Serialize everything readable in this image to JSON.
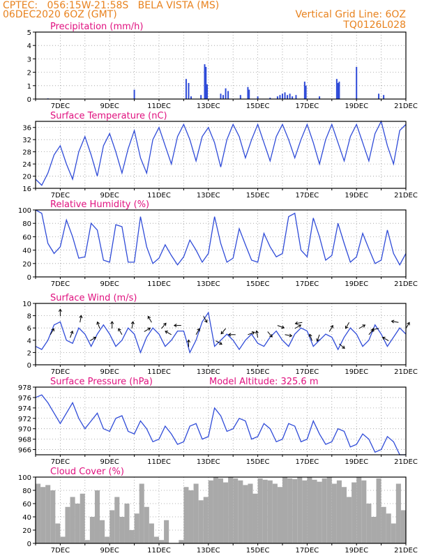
{
  "header": {
    "line1": "CPTEC:   056:15W-21:58S   BELA VISTA (MS)",
    "line2": "06DEC2020 6OZ (GMT)",
    "grid_note": "Vertical Grid Line: 6OZ",
    "code": "TQ0126L028"
  },
  "colors": {
    "header": "#e8821e",
    "title": "#e0117f",
    "line": "#2f4bd8",
    "precip": "#2f4bd8",
    "cloud": "#a9a9a9",
    "grid": "#999999"
  },
  "x_ticks": [
    "7DEC",
    "9DEC",
    "11DEC",
    "13DEC",
    "15DEC",
    "17DEC",
    "19DEC",
    "21DEC"
  ],
  "chart_data": [
    {
      "type": "bar",
      "title": "Precipitation (mm/h)",
      "ylim": [
        0,
        5
      ],
      "yticks": [
        "0",
        "1",
        "2",
        "3",
        "4",
        "5"
      ],
      "x": [
        "6.5",
        "10.0",
        "12.1",
        "12.2",
        "12.3",
        "12.7",
        "12.85",
        "12.9",
        "12.95",
        "13.5",
        "13.6",
        "13.7",
        "13.8",
        "14.3",
        "14.6",
        "14.65",
        "15.0",
        "15.5",
        "15.8",
        "15.9",
        "16.0",
        "16.1",
        "16.2",
        "16.3",
        "16.4",
        "16.55",
        "16.9",
        "16.95",
        "17.5",
        "18.2",
        "18.25",
        "18.3",
        "19.0",
        "19.9",
        "20.1"
      ],
      "values": [
        0.05,
        0.7,
        1.5,
        1.2,
        0.2,
        0.3,
        2.6,
        2.4,
        1.1,
        0.4,
        0.3,
        0.8,
        0.6,
        0.3,
        0.9,
        0.7,
        0.2,
        0.1,
        0.2,
        0.3,
        0.4,
        0.5,
        0.3,
        0.4,
        0.2,
        0.3,
        1.3,
        1.0,
        0.2,
        1.5,
        1.2,
        1.3,
        2.4,
        0.4,
        0.3
      ]
    },
    {
      "type": "line",
      "title": "Surface Temperature (nC)",
      "ylim": [
        16,
        38
      ],
      "yticks": [
        "16",
        "20",
        "24",
        "28",
        "32",
        "36"
      ],
      "x": [
        6.0,
        6.25,
        6.5,
        6.75,
        7.0,
        7.25,
        7.5,
        7.75,
        8.0,
        8.25,
        8.5,
        8.75,
        9.0,
        9.25,
        9.5,
        9.75,
        10.0,
        10.25,
        10.5,
        10.75,
        11.0,
        11.25,
        11.5,
        11.75,
        12.0,
        12.25,
        12.5,
        12.75,
        13.0,
        13.25,
        13.5,
        13.75,
        14.0,
        14.25,
        14.5,
        14.75,
        15.0,
        15.25,
        15.5,
        15.75,
        16.0,
        16.25,
        16.5,
        16.75,
        17.0,
        17.25,
        17.5,
        17.75,
        18.0,
        18.25,
        18.5,
        18.75,
        19.0,
        19.25,
        19.5,
        19.75,
        20.0,
        20.25,
        20.5,
        20.75,
        21.0
      ],
      "values": [
        19,
        17,
        21,
        27,
        30,
        24,
        19,
        28,
        33,
        27,
        20,
        30,
        34,
        28,
        21,
        29,
        35,
        26,
        21,
        32,
        36,
        30,
        24,
        33,
        37,
        32,
        25,
        33,
        36,
        31,
        23,
        32,
        37,
        33,
        26,
        32,
        37,
        31,
        25,
        33,
        37,
        32,
        26,
        32,
        37,
        31,
        24,
        32,
        37,
        31,
        25,
        33,
        37,
        31,
        25,
        34,
        38,
        30,
        24,
        35,
        37
      ]
    },
    {
      "type": "line",
      "title": "Relative Humidity (%)",
      "ylim": [
        0,
        100
      ],
      "yticks": [
        "0",
        "20",
        "40",
        "60",
        "80",
        "100"
      ],
      "x": [
        6.0,
        6.25,
        6.5,
        6.75,
        7.0,
        7.25,
        7.5,
        7.75,
        8.0,
        8.25,
        8.5,
        8.75,
        9.0,
        9.25,
        9.5,
        9.75,
        10.0,
        10.25,
        10.5,
        10.75,
        11.0,
        11.25,
        11.5,
        11.75,
        12.0,
        12.25,
        12.5,
        12.75,
        13.0,
        13.25,
        13.5,
        13.75,
        14.0,
        14.25,
        14.5,
        14.75,
        15.0,
        15.25,
        15.5,
        15.75,
        16.0,
        16.25,
        16.5,
        16.75,
        17.0,
        17.25,
        17.5,
        17.75,
        18.0,
        18.25,
        18.5,
        18.75,
        19.0,
        19.25,
        19.5,
        19.75,
        20.0,
        20.25,
        20.5,
        20.75,
        21.0
      ],
      "values": [
        100,
        95,
        50,
        35,
        45,
        85,
        60,
        28,
        30,
        80,
        70,
        25,
        22,
        78,
        75,
        22,
        22,
        90,
        45,
        20,
        28,
        48,
        32,
        18,
        30,
        55,
        40,
        22,
        35,
        90,
        50,
        22,
        28,
        72,
        48,
        25,
        22,
        65,
        45,
        30,
        35,
        90,
        95,
        40,
        30,
        88,
        60,
        25,
        32,
        80,
        50,
        22,
        30,
        65,
        42,
        20,
        25,
        70,
        35,
        18,
        35
      ]
    },
    {
      "type": "line",
      "title": "Surface Wind (m/s)",
      "ylim": [
        0,
        10
      ],
      "yticks": [
        "0",
        "2",
        "4",
        "6",
        "8",
        "10"
      ],
      "x": [
        6.0,
        6.25,
        6.5,
        6.75,
        7.0,
        7.25,
        7.5,
        7.75,
        8.0,
        8.25,
        8.5,
        8.75,
        9.0,
        9.25,
        9.5,
        9.75,
        10.0,
        10.25,
        10.5,
        10.75,
        11.0,
        11.25,
        11.5,
        11.75,
        12.0,
        12.25,
        12.5,
        12.75,
        13.0,
        13.25,
        13.5,
        13.75,
        14.0,
        14.25,
        14.5,
        14.75,
        15.0,
        15.25,
        15.5,
        15.75,
        16.0,
        16.25,
        16.5,
        16.75,
        17.0,
        17.25,
        17.5,
        17.75,
        18.0,
        18.25,
        18.5,
        18.75,
        19.0,
        19.25,
        19.5,
        19.75,
        20.0,
        20.25,
        20.5,
        20.75,
        21.0
      ],
      "values": [
        3,
        2.5,
        4,
        6.5,
        7,
        4,
        3.5,
        6,
        5,
        3,
        5,
        6.5,
        5,
        3,
        4,
        6,
        5,
        2,
        4.5,
        6,
        5,
        3,
        4,
        5.5,
        5.5,
        2,
        4,
        7,
        8.5,
        3,
        4,
        5,
        4,
        2.5,
        4,
        5,
        3.5,
        3,
        4.5,
        5.5,
        4,
        3,
        5,
        6,
        5.5,
        3,
        4,
        5,
        4.5,
        2.5,
        4.5,
        6,
        5,
        3,
        4,
        6.5,
        5,
        3,
        4.5,
        6,
        5
      ],
      "arrows_x": [
        6.6,
        7.0,
        7.4,
        7.8,
        8.2,
        8.6,
        9.1,
        9.5,
        9.9,
        10.4,
        10.7,
        11.1,
        11.5,
        11.9,
        12.2,
        12.5,
        12.8,
        13.3,
        13.7,
        14.1,
        14.6,
        15.0,
        15.4,
        15.8,
        16.1,
        16.5,
        16.8,
        17.2,
        17.5,
        17.9,
        18.3,
        18.7,
        19.1,
        19.5,
        19.9,
        20.3,
        20.7,
        21.0
      ],
      "arrows_dir": [
        30,
        0,
        20,
        10,
        60,
        -20,
        0,
        -30,
        10,
        60,
        -30,
        40,
        -60,
        -90,
        0,
        30,
        150,
        120,
        -140,
        -90,
        70,
        -10,
        140,
        110,
        100,
        60,
        -100,
        -20,
        -160,
        30,
        130,
        -150,
        60,
        40,
        -100,
        -60,
        -80,
        30
      ]
    },
    {
      "type": "line",
      "title": "Surface Pressure (hPa)",
      "subtitle": "Model Altitude: 325.6 m",
      "ylim": [
        965,
        978
      ],
      "yticks": [
        "966",
        "968",
        "970",
        "972",
        "974",
        "976",
        "978"
      ],
      "x": [
        6.0,
        6.25,
        6.5,
        6.75,
        7.0,
        7.25,
        7.5,
        7.75,
        8.0,
        8.25,
        8.5,
        8.75,
        9.0,
        9.25,
        9.5,
        9.75,
        10.0,
        10.25,
        10.5,
        10.75,
        11.0,
        11.25,
        11.5,
        11.75,
        12.0,
        12.25,
        12.5,
        12.75,
        13.0,
        13.25,
        13.5,
        13.75,
        14.0,
        14.25,
        14.5,
        14.75,
        15.0,
        15.25,
        15.5,
        15.75,
        16.0,
        16.25,
        16.5,
        16.75,
        17.0,
        17.25,
        17.5,
        17.75,
        18.0,
        18.25,
        18.5,
        18.75,
        19.0,
        19.25,
        19.5,
        19.75,
        20.0,
        20.25,
        20.5,
        20.75,
        21.0
      ],
      "values": [
        976,
        976.5,
        975,
        973,
        971,
        973,
        975,
        972,
        970,
        971.5,
        973,
        970,
        969.5,
        972,
        972.5,
        969.5,
        969,
        971.5,
        970,
        967.5,
        968,
        970.5,
        969,
        967,
        967.5,
        970.5,
        971,
        968,
        968.5,
        974,
        972.5,
        969.5,
        970,
        972,
        971.5,
        968,
        968.5,
        971,
        970,
        967.5,
        968,
        971,
        970.5,
        967.5,
        968,
        971.5,
        969,
        967,
        967.5,
        970,
        969.5,
        966.5,
        967,
        969,
        968,
        965.5,
        966,
        968.5,
        967.5,
        965,
        965
      ]
    },
    {
      "type": "bar",
      "title": "Cloud Cover (%)",
      "ylim": [
        0,
        100
      ],
      "yticks": [
        "0",
        "20",
        "40",
        "60",
        "80",
        "100"
      ],
      "x": [
        6.1,
        6.3,
        6.5,
        6.7,
        6.9,
        7.1,
        7.3,
        7.5,
        7.7,
        7.9,
        8.1,
        8.3,
        8.5,
        8.7,
        8.9,
        9.1,
        9.3,
        9.5,
        9.7,
        9.9,
        10.1,
        10.3,
        10.5,
        10.7,
        10.9,
        11.1,
        11.3,
        11.5,
        11.7,
        11.9,
        12.1,
        12.3,
        12.5,
        12.7,
        12.9,
        13.1,
        13.3,
        13.5,
        13.7,
        13.9,
        14.1,
        14.3,
        14.5,
        14.7,
        14.9,
        15.1,
        15.3,
        15.5,
        15.7,
        15.9,
        16.1,
        16.3,
        16.5,
        16.7,
        16.9,
        17.1,
        17.3,
        17.5,
        17.7,
        17.9,
        18.1,
        18.3,
        18.5,
        18.7,
        18.9,
        19.1,
        19.3,
        19.5,
        19.7,
        19.9,
        20.1,
        20.3,
        20.5,
        20.7,
        20.9
      ],
      "values": [
        90,
        85,
        88,
        80,
        30,
        10,
        55,
        70,
        60,
        75,
        5,
        40,
        80,
        35,
        10,
        50,
        70,
        40,
        60,
        20,
        45,
        90,
        55,
        30,
        10,
        5,
        35,
        0,
        0,
        5,
        85,
        80,
        90,
        65,
        70,
        95,
        100,
        98,
        92,
        100,
        98,
        95,
        88,
        90,
        75,
        98,
        96,
        95,
        90,
        85,
        100,
        98,
        97,
        100,
        95,
        100,
        96,
        93,
        98,
        100,
        90,
        95,
        85,
        70,
        92,
        100,
        95,
        60,
        40,
        98,
        55,
        45,
        30,
        90,
        50
      ]
    }
  ]
}
